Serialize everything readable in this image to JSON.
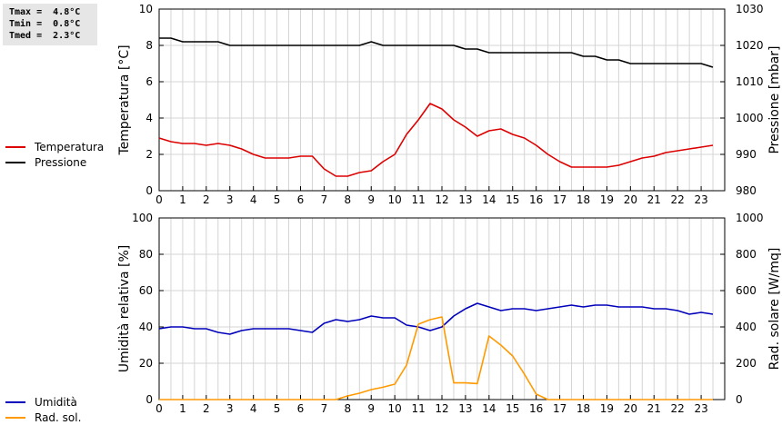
{
  "stats": {
    "tmax": "Tmax =  4.8°C",
    "tmin": "Tmin =  0.8°C",
    "tmed": "Tmed =  2.3°C"
  },
  "legend_top": [
    {
      "label": "Temperatura",
      "color": "#dd0000"
    },
    {
      "label": "Pressione",
      "color": "#000000"
    }
  ],
  "legend_bottom": [
    {
      "label": "Umidità",
      "color": "#0000bb"
    },
    {
      "label": "Rad. sol.",
      "color": "#ff9900"
    }
  ],
  "chart_data": [
    {
      "type": "line",
      "ylabel": "Temperatura [°C]",
      "y2label": "Pressione [mbar]",
      "xlim": [
        0,
        24
      ],
      "ylim": [
        0,
        10
      ],
      "y2lim": [
        980,
        1030
      ],
      "xticks": [
        "0",
        "1",
        "2",
        "3",
        "4",
        "5",
        "6",
        "7",
        "8",
        "9",
        "10",
        "11",
        "12",
        "13",
        "14",
        "15",
        "16",
        "17",
        "18",
        "19",
        "20",
        "21",
        "22",
        "23"
      ],
      "yticks": [
        "0",
        "2",
        "4",
        "6",
        "8",
        "10"
      ],
      "y2ticks": [
        "980",
        "990",
        "1000",
        "1010",
        "1020",
        "1030"
      ],
      "grid": true,
      "series": [
        {
          "name": "Temperatura",
          "axis": "left",
          "color": "#dd0000",
          "points": [
            [
              0,
              2.9
            ],
            [
              0.5,
              2.7
            ],
            [
              1,
              2.6
            ],
            [
              1.5,
              2.6
            ],
            [
              2,
              2.5
            ],
            [
              2.5,
              2.6
            ],
            [
              3,
              2.5
            ],
            [
              3.5,
              2.3
            ],
            [
              4,
              2.0
            ],
            [
              4.5,
              1.8
            ],
            [
              5,
              1.8
            ],
            [
              5.5,
              1.8
            ],
            [
              6,
              1.9
            ],
            [
              6.5,
              1.9
            ],
            [
              7,
              1.2
            ],
            [
              7.5,
              0.8
            ],
            [
              8,
              0.8
            ],
            [
              8.5,
              1.0
            ],
            [
              9,
              1.1
            ],
            [
              9.5,
              1.6
            ],
            [
              10,
              2.0
            ],
            [
              10.5,
              3.1
            ],
            [
              11,
              3.9
            ],
            [
              11.5,
              4.8
            ],
            [
              12,
              4.5
            ],
            [
              12.5,
              3.9
            ],
            [
              13,
              3.5
            ],
            [
              13.5,
              3.0
            ],
            [
              14,
              3.3
            ],
            [
              14.5,
              3.4
            ],
            [
              15,
              3.1
            ],
            [
              15.5,
              2.9
            ],
            [
              16,
              2.5
            ],
            [
              16.5,
              2.0
            ],
            [
              17,
              1.6
            ],
            [
              17.5,
              1.3
            ],
            [
              18,
              1.3
            ],
            [
              18.5,
              1.3
            ],
            [
              19,
              1.3
            ],
            [
              19.5,
              1.4
            ],
            [
              20,
              1.6
            ],
            [
              20.5,
              1.8
            ],
            [
              21,
              1.9
            ],
            [
              21.5,
              2.1
            ],
            [
              22,
              2.2
            ],
            [
              22.5,
              2.3
            ],
            [
              23,
              2.4
            ],
            [
              23.5,
              2.5
            ]
          ]
        },
        {
          "name": "Pressione",
          "axis": "right",
          "color": "#000000",
          "points": [
            [
              0,
              1022
            ],
            [
              0.5,
              1022
            ],
            [
              1,
              1021
            ],
            [
              2.5,
              1021
            ],
            [
              3,
              1020
            ],
            [
              8.5,
              1020
            ],
            [
              9,
              1021
            ],
            [
              9.5,
              1020
            ],
            [
              12.5,
              1020
            ],
            [
              13,
              1019
            ],
            [
              13.5,
              1019
            ],
            [
              14,
              1018
            ],
            [
              17.5,
              1018
            ],
            [
              18,
              1017
            ],
            [
              18.5,
              1017
            ],
            [
              19,
              1016
            ],
            [
              19.5,
              1016
            ],
            [
              20,
              1015
            ],
            [
              23,
              1015
            ],
            [
              23.5,
              1014
            ]
          ]
        }
      ]
    },
    {
      "type": "line",
      "ylabel": "Umidità relativa [%]",
      "y2label": "Rad. solare [W/mq]",
      "xlim": [
        0,
        24
      ],
      "ylim": [
        0,
        100
      ],
      "y2lim": [
        0,
        1000
      ],
      "xticks": [
        "0",
        "1",
        "2",
        "3",
        "4",
        "5",
        "6",
        "7",
        "8",
        "9",
        "10",
        "11",
        "12",
        "13",
        "14",
        "15",
        "16",
        "17",
        "18",
        "19",
        "20",
        "21",
        "22",
        "23"
      ],
      "yticks": [
        "0",
        "20",
        "40",
        "60",
        "80",
        "100"
      ],
      "y2ticks": [
        "0",
        "200",
        "400",
        "600",
        "800",
        "1000"
      ],
      "grid": true,
      "series": [
        {
          "name": "Umidità",
          "axis": "left",
          "color": "#0000bb",
          "points": [
            [
              0,
              39
            ],
            [
              0.5,
              40
            ],
            [
              1,
              40
            ],
            [
              1.5,
              39
            ],
            [
              2,
              39
            ],
            [
              2.5,
              37
            ],
            [
              3,
              36
            ],
            [
              3.5,
              38
            ],
            [
              4,
              39
            ],
            [
              4.5,
              39
            ],
            [
              5,
              39
            ],
            [
              5.5,
              39
            ],
            [
              6,
              38
            ],
            [
              6.5,
              37
            ],
            [
              7,
              42
            ],
            [
              7.5,
              44
            ],
            [
              8,
              43
            ],
            [
              8.5,
              44
            ],
            [
              9,
              46
            ],
            [
              9.5,
              45
            ],
            [
              10,
              45
            ],
            [
              10.5,
              41
            ],
            [
              11,
              40
            ],
            [
              11.5,
              38
            ],
            [
              12,
              40
            ],
            [
              12.5,
              46
            ],
            [
              13,
              50
            ],
            [
              13.5,
              53
            ],
            [
              14,
              51
            ],
            [
              14.5,
              49
            ],
            [
              15,
              50
            ],
            [
              15.5,
              50
            ],
            [
              16,
              49
            ],
            [
              16.5,
              50
            ],
            [
              17,
              51
            ],
            [
              17.5,
              52
            ],
            [
              18,
              51
            ],
            [
              18.5,
              52
            ],
            [
              19,
              52
            ],
            [
              19.5,
              51
            ],
            [
              20,
              51
            ],
            [
              20.5,
              51
            ],
            [
              21,
              50
            ],
            [
              21.5,
              50
            ],
            [
              22,
              49
            ],
            [
              22.5,
              47
            ],
            [
              23,
              48
            ],
            [
              23.5,
              47
            ]
          ]
        },
        {
          "name": "Rad. sol.",
          "axis": "right",
          "color": "#ff9900",
          "points": [
            [
              0,
              0
            ],
            [
              7.5,
              0
            ],
            [
              8,
              20
            ],
            [
              8.5,
              35
            ],
            [
              9,
              55
            ],
            [
              9.5,
              68
            ],
            [
              10,
              85
            ],
            [
              10.5,
              190
            ],
            [
              11,
              415
            ],
            [
              11.5,
              440
            ],
            [
              12,
              455
            ],
            [
              12.5,
              92
            ],
            [
              13,
              92
            ],
            [
              13.5,
              88
            ],
            [
              14,
              350
            ],
            [
              14.5,
              300
            ],
            [
              15,
              240
            ],
            [
              15.5,
              140
            ],
            [
              16,
              30
            ],
            [
              16.5,
              0
            ],
            [
              23.5,
              0
            ]
          ]
        }
      ]
    }
  ]
}
